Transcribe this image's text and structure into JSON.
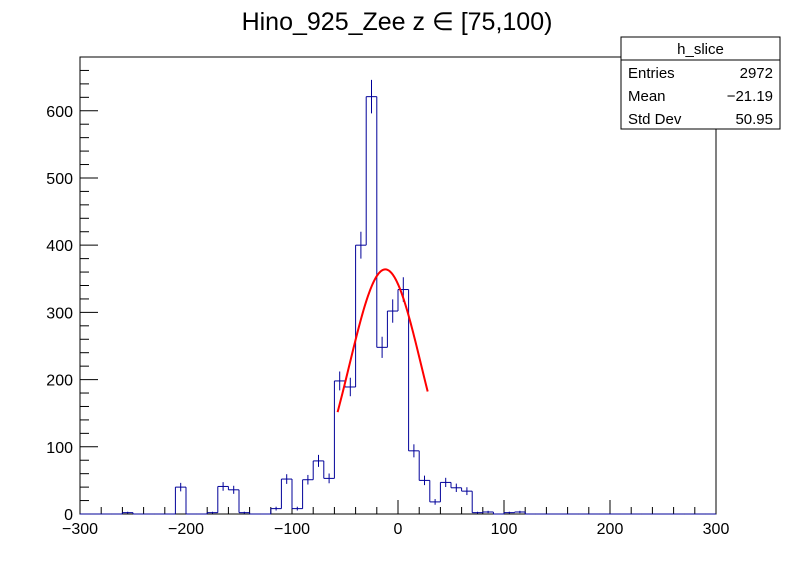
{
  "chart_data": {
    "type": "histogram",
    "title": "Hino_925_Zee z  ∈ [75,100)",
    "xlim": [
      -300,
      300
    ],
    "ylim": [
      0,
      680
    ],
    "x_ticks": [
      -300,
      -200,
      -100,
      0,
      100,
      200,
      300
    ],
    "y_ticks": [
      0,
      100,
      200,
      300,
      400,
      500,
      600
    ],
    "bin_width": 10,
    "bins": [
      {
        "x0": -300,
        "y": 0
      },
      {
        "x0": -290,
        "y": 0
      },
      {
        "x0": -280,
        "y": 0
      },
      {
        "x0": -270,
        "y": 0
      },
      {
        "x0": -260,
        "y": 2
      },
      {
        "x0": -250,
        "y": 0
      },
      {
        "x0": -240,
        "y": 0
      },
      {
        "x0": -230,
        "y": 0
      },
      {
        "x0": -220,
        "y": 0
      },
      {
        "x0": -210,
        "y": 40
      },
      {
        "x0": -200,
        "y": 0
      },
      {
        "x0": -190,
        "y": 0
      },
      {
        "x0": -180,
        "y": 2
      },
      {
        "x0": -170,
        "y": 41
      },
      {
        "x0": -160,
        "y": 36
      },
      {
        "x0": -150,
        "y": 2
      },
      {
        "x0": -140,
        "y": 0
      },
      {
        "x0": -130,
        "y": 0
      },
      {
        "x0": -120,
        "y": 8
      },
      {
        "x0": -110,
        "y": 52
      },
      {
        "x0": -100,
        "y": 8
      },
      {
        "x0": -90,
        "y": 51
      },
      {
        "x0": -80,
        "y": 79
      },
      {
        "x0": -70,
        "y": 53
      },
      {
        "x0": -60,
        "y": 198
      },
      {
        "x0": -50,
        "y": 189
      },
      {
        "x0": -40,
        "y": 400
      },
      {
        "x0": -30,
        "y": 621
      },
      {
        "x0": -20,
        "y": 248
      },
      {
        "x0": -10,
        "y": 302
      },
      {
        "x0": 0,
        "y": 334
      },
      {
        "x0": 10,
        "y": 94
      },
      {
        "x0": 20,
        "y": 50
      },
      {
        "x0": 30,
        "y": 18
      },
      {
        "x0": 40,
        "y": 47
      },
      {
        "x0": 50,
        "y": 39
      },
      {
        "x0": 60,
        "y": 34
      },
      {
        "x0": 70,
        "y": 2
      },
      {
        "x0": 80,
        "y": 3
      },
      {
        "x0": 90,
        "y": 0
      },
      {
        "x0": 100,
        "y": 2
      },
      {
        "x0": 110,
        "y": 3
      },
      {
        "x0": 120,
        "y": 0
      },
      {
        "x0": 130,
        "y": 0
      },
      {
        "x0": 140,
        "y": 0
      },
      {
        "x0": 150,
        "y": 0
      },
      {
        "x0": 160,
        "y": 0
      },
      {
        "x0": 170,
        "y": 0
      },
      {
        "x0": 180,
        "y": 0
      },
      {
        "x0": 190,
        "y": 0
      },
      {
        "x0": 200,
        "y": 0
      },
      {
        "x0": 210,
        "y": 0
      },
      {
        "x0": 220,
        "y": 0
      },
      {
        "x0": 230,
        "y": 0
      },
      {
        "x0": 240,
        "y": 0
      },
      {
        "x0": 250,
        "y": 0
      },
      {
        "x0": 260,
        "y": 0
      },
      {
        "x0": 270,
        "y": 0
      },
      {
        "x0": 280,
        "y": 0
      },
      {
        "x0": 290,
        "y": 0
      }
    ],
    "fit": {
      "type": "gaussian",
      "amplitude": 364,
      "mean": -12,
      "sigma": 34,
      "x_range": [
        -57,
        28
      ],
      "color": "#ff0000"
    },
    "histogram_color": "#000099",
    "stats_box": {
      "name": "h_slice",
      "rows": [
        {
          "label": "Entries",
          "value": "2972"
        },
        {
          "label": "Mean",
          "value": "−21.19"
        },
        {
          "label": "Std Dev",
          "value": "50.95"
        }
      ]
    }
  }
}
